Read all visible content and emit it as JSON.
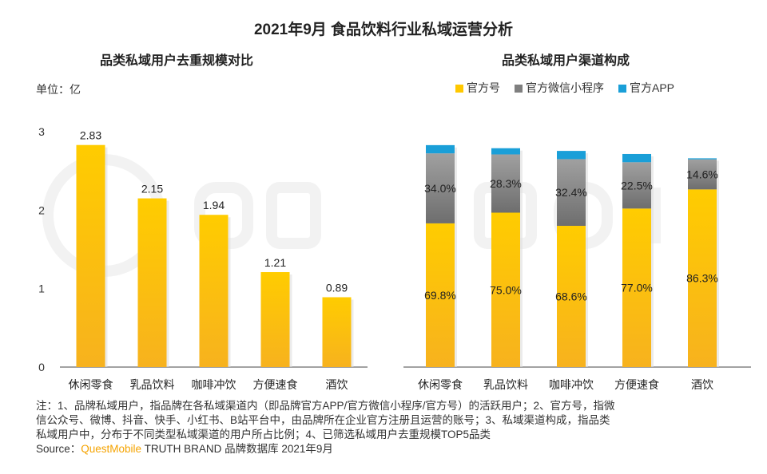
{
  "title": "2021年9月 食品饮料行业私域运营分析",
  "colors": {
    "yellow": "#ffc800",
    "gray": "#7f7f7f",
    "blue": "#1a9fd8",
    "brand": "#f5a300"
  },
  "chart_data": [
    {
      "type": "bar",
      "title": "品类私域用户去重规模对比",
      "unit_label": "单位：亿",
      "categories": [
        "休闲零食",
        "乳品饮料",
        "咖啡冲饮",
        "方便速食",
        "酒饮"
      ],
      "values": [
        2.83,
        2.15,
        1.94,
        1.21,
        0.89
      ],
      "value_labels": [
        "2.83",
        "2.15",
        "1.94",
        "1.21",
        "0.89"
      ],
      "yticks": [
        "0",
        "1",
        "2",
        "3"
      ],
      "ylim": [
        0,
        3
      ],
      "grid": false
    },
    {
      "type": "bar",
      "stacked": true,
      "title": "品类私域用户渠道构成",
      "categories": [
        "休闲零食",
        "乳品饮料",
        "咖啡冲饮",
        "方便速食",
        "酒饮"
      ],
      "legend_position": "top",
      "series": [
        {
          "name": "官方号",
          "color": "#ffc800",
          "values": [
            69.8,
            75.0,
            68.6,
            77.0,
            86.3
          ],
          "labels": [
            "69.8%",
            "75.0%",
            "68.6%",
            "77.0%",
            "86.3%"
          ]
        },
        {
          "name": "官方微信小程序",
          "color": "#7f7f7f",
          "values": [
            34.0,
            28.3,
            32.4,
            22.5,
            14.6
          ],
          "labels": [
            "34.0%",
            "28.3%",
            "32.4%",
            "22.5%",
            "14.6%"
          ]
        },
        {
          "name": "官方APP",
          "color": "#1a9fd8",
          "values": [
            4,
            3,
            4,
            4,
            0.5
          ]
        }
      ],
      "grid": false
    }
  ],
  "footnote": {
    "lines": [
      "注：1、品牌私域用户，指品牌在各私域渠道内（即品牌官方APP/官方微信小程序/官方号）的活跃用户；2、官方号，指微",
      "信公众号、微博、抖音、快手、小红书、B站平台中，由品牌所在企业官方注册且运营的账号；3、私域渠道构成，指品类",
      "私域用户中，分布于不同类型私域渠道的用户所占比例；4、已筛选私域用户去重规模TOP5品类"
    ],
    "source_prefix": "Source：",
    "source_brand": "QuestMobile",
    "source_rest": " TRUTH BRAND 品牌数据库 2021年9月"
  },
  "watermark": "QUESTMOBILE"
}
